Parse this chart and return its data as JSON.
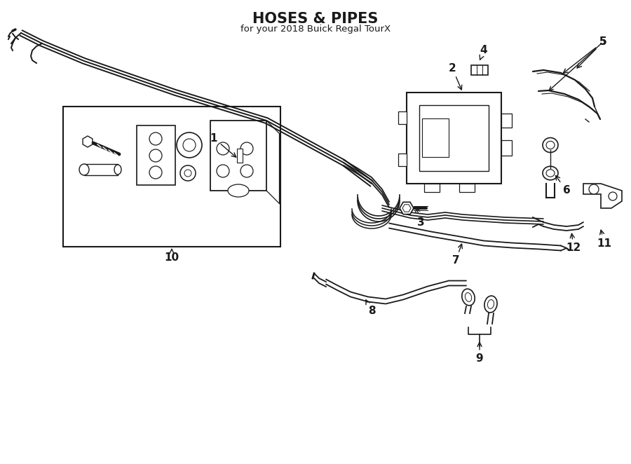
{
  "title": "HOSES & PIPES",
  "subtitle": "for your 2018 Buick Regal TourX",
  "bg": "#ffffff",
  "lc": "#1a1a1a",
  "fig_w": 9.0,
  "fig_h": 6.62,
  "dpi": 100
}
